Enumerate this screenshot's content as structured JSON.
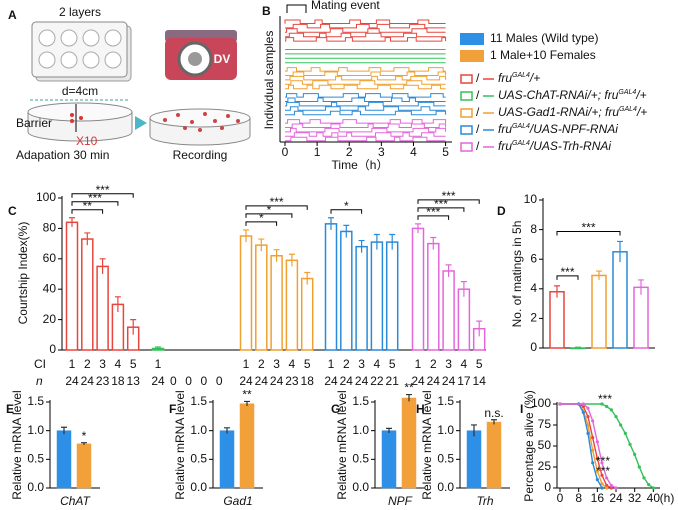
{
  "diagram_a": {
    "panel": "A",
    "layers": "2 layers",
    "distance": "d=4cm",
    "barrier": "Barrier",
    "count": "X10",
    "adaptation": "Adapation 30 min",
    "recording": "Recording",
    "camera": "DV"
  },
  "chart_data": [
    {
      "type": "raster",
      "panel": "B",
      "annotation": "Mating event",
      "ylabel": "Individual samples",
      "xlabel": "Time（h）",
      "xlim": [
        0,
        5.2
      ],
      "xticks": [
        0,
        1,
        2,
        3,
        4,
        5
      ],
      "legend": [
        {
          "name": "11 Males (Wild type)",
          "color": "#2e8fe6"
        },
        {
          "name": "1 Male+10 Females",
          "color": "#f2a03a"
        }
      ],
      "separator": "/",
      "groups": [
        {
          "color": "#e8453c",
          "label": [
            "fru",
            "GAL4",
            "/+"
          ]
        },
        {
          "color": "#33c05a",
          "label": [
            "UAS-ChAT-RNAi/+; fru",
            "GAL4",
            "/+"
          ]
        },
        {
          "color": "#f0a030",
          "label": [
            "UAS-Gad1-RNAi/+; fru",
            "GAL4",
            "/+"
          ]
        },
        {
          "color": "#2a8ad8",
          "label": [
            "fru",
            "GAL4",
            "/UAS-NPF-RNAi"
          ]
        },
        {
          "color": "#e466dc",
          "label": [
            "fru",
            "GAL4",
            "/UAS-Trh-RNAi"
          ]
        }
      ]
    },
    {
      "type": "grouped_bar",
      "panel": "C",
      "ylabel": "Courtship Index(%)",
      "ylim": [
        0,
        100
      ],
      "yticks": [
        0,
        20,
        40,
        60,
        80,
        100
      ],
      "row_labels": [
        "CI",
        "n"
      ],
      "series": [
        {
          "color": "#e8453c",
          "categories": [
            "1",
            "2",
            "3",
            "4",
            "5"
          ],
          "values": [
            84,
            73,
            55,
            30,
            15
          ],
          "errors": [
            3,
            4,
            5,
            5,
            5
          ],
          "n": [
            24,
            24,
            23,
            18,
            13
          ],
          "brackets": [
            {
              "label": "***",
              "from": 0,
              "to": 4
            },
            {
              "label": "***",
              "from": 0,
              "to": 3
            },
            {
              "label": "**",
              "from": 0,
              "to": 2
            }
          ]
        },
        {
          "color": "#33c05a",
          "categories": [
            "1",
            null,
            null,
            null,
            null
          ],
          "values": [
            1,
            null,
            null,
            null,
            null
          ],
          "errors": [
            1,
            null,
            null,
            null,
            null
          ],
          "n": [
            24,
            0,
            0,
            0,
            0
          ],
          "brackets": []
        },
        {
          "color": "#f0a030",
          "categories": [
            "1",
            "2",
            "3",
            "4",
            "5"
          ],
          "values": [
            75,
            69,
            62,
            59,
            47
          ],
          "errors": [
            4,
            4,
            4,
            4,
            4
          ],
          "n": [
            24,
            24,
            24,
            23,
            18
          ],
          "brackets": [
            {
              "label": "***",
              "from": 0,
              "to": 4
            },
            {
              "label": "*",
              "from": 0,
              "to": 3
            },
            {
              "label": "*",
              "from": 0,
              "to": 2
            }
          ]
        },
        {
          "color": "#2a8ad8",
          "categories": [
            "1",
            "2",
            "3",
            "4",
            "5"
          ],
          "values": [
            83,
            78,
            68,
            71,
            71
          ],
          "errors": [
            4,
            4,
            4,
            5,
            5
          ],
          "n": [
            24,
            24,
            24,
            22,
            21
          ],
          "brackets": [
            {
              "label": "*",
              "from": 0,
              "to": 2
            }
          ]
        },
        {
          "color": "#e466dc",
          "categories": [
            "1",
            "2",
            "3",
            "4",
            "5"
          ],
          "values": [
            80,
            70,
            52,
            40,
            14
          ],
          "errors": [
            3,
            4,
            4,
            5,
            5
          ],
          "n": [
            24,
            24,
            24,
            17,
            14
          ],
          "brackets": [
            {
              "label": "***",
              "from": 0,
              "to": 4
            },
            {
              "label": "***",
              "from": 0,
              "to": 3
            },
            {
              "label": "***",
              "from": 0,
              "to": 2
            }
          ]
        }
      ]
    },
    {
      "type": "bar",
      "panel": "D",
      "ylabel": "No. of matings in 5h",
      "categories": [
        null,
        null,
        null,
        null,
        null
      ],
      "values": [
        3.8,
        0,
        4.9,
        6.5,
        4.1
      ],
      "errors": [
        0.4,
        0.05,
        0.3,
        0.7,
        0.5
      ],
      "colors": [
        "#e8453c",
        "#33c05a",
        "#f0a030",
        "#2a8ad8",
        "#e466dc"
      ],
      "ylim": [
        0,
        10
      ],
      "yticks": [
        0,
        2,
        4,
        6,
        8,
        10
      ],
      "brackets": [
        {
          "label": "***",
          "from": 0,
          "to": 3
        },
        {
          "label": "***",
          "from": 0,
          "to": 1
        }
      ]
    },
    {
      "type": "bar",
      "panel": "E",
      "ylabel": "Relative mRNA level",
      "xlabel": "ChAT",
      "categories": [
        null,
        null
      ],
      "values": [
        1.0,
        0.77
      ],
      "errors": [
        0.06,
        0.02
      ],
      "colors": [
        "#2e8fe6",
        "#f2a03a"
      ],
      "ylim": [
        0,
        1.5
      ],
      "yticks": [
        {
          "value": 0,
          "label": "0.0"
        },
        0.5,
        {
          "value": 1,
          "label": "1.0"
        },
        1.5
      ],
      "annotation": "*"
    },
    {
      "type": "bar",
      "panel": "F",
      "ylabel": "Relative mRNA level",
      "xlabel": "Gad1",
      "categories": [
        null,
        null
      ],
      "values": [
        1.0,
        1.47
      ],
      "errors": [
        0.05,
        0.04
      ],
      "colors": [
        "#2e8fe6",
        "#f2a03a"
      ],
      "ylim": [
        0,
        1.5
      ],
      "yticks": [
        {
          "value": 0,
          "label": "0.0"
        },
        0.5,
        {
          "value": 1,
          "label": "1.0"
        },
        1.5
      ],
      "annotation": "**"
    },
    {
      "type": "bar",
      "panel": "G",
      "ylabel": "Relative mRNA level",
      "xlabel": "NPF",
      "categories": [
        null,
        null
      ],
      "values": [
        1.0,
        1.57
      ],
      "errors": [
        0.04,
        0.06
      ],
      "colors": [
        "#2e8fe6",
        "#f2a03a"
      ],
      "ylim": [
        0,
        1.5
      ],
      "yticks": [
        {
          "value": 0,
          "label": "0.0"
        },
        0.5,
        {
          "value": 1,
          "label": "1.0"
        },
        1.5
      ],
      "annotation": "**"
    },
    {
      "type": "bar",
      "panel": "H",
      "ylabel": "Relative mRNA level",
      "xlabel": "Trh",
      "categories": [
        null,
        null
      ],
      "values": [
        1.0,
        1.15
      ],
      "errors": [
        0.1,
        0.04
      ],
      "colors": [
        "#2e8fe6",
        "#f2a03a"
      ],
      "ylim": [
        0,
        1.5
      ],
      "yticks": [
        {
          "value": 0,
          "label": "0.0"
        },
        0.5,
        {
          "value": 1,
          "label": "1.0"
        },
        1.5
      ],
      "annotation": "n.s."
    },
    {
      "type": "line",
      "panel": "I",
      "ylabel": "Percentage alive (%)",
      "xlabel": "(h)",
      "xlim": [
        0,
        42
      ],
      "ylim": [
        0,
        100
      ],
      "xticks": [
        0,
        8,
        16,
        24,
        32,
        40
      ],
      "yticks": [
        0,
        25,
        50,
        75,
        100
      ],
      "annotations": [
        "***",
        "***",
        "***"
      ],
      "series": [
        {
          "color": "#e8453c",
          "x": [
            0,
            8,
            10,
            12,
            14,
            16,
            18,
            20,
            22
          ],
          "values": [
            100,
            100,
            97,
            85,
            60,
            35,
            15,
            3,
            0
          ]
        },
        {
          "color": "#33c05a",
          "x": [
            0,
            18,
            20,
            22,
            24,
            26,
            28,
            30,
            32,
            34,
            36,
            38,
            40
          ],
          "values": [
            100,
            100,
            97,
            93,
            85,
            75,
            65,
            52,
            40,
            25,
            12,
            4,
            0
          ]
        },
        {
          "color": "#f0a030",
          "x": [
            0,
            8,
            10,
            12,
            14,
            16,
            18,
            20
          ],
          "values": [
            100,
            100,
            92,
            75,
            45,
            20,
            5,
            0
          ]
        },
        {
          "color": "#2a8ad8",
          "x": [
            0,
            8,
            10,
            12,
            14,
            16,
            18
          ],
          "values": [
            100,
            100,
            90,
            65,
            30,
            10,
            0
          ]
        },
        {
          "color": "#e466dc",
          "x": [
            0,
            10,
            12,
            14,
            16,
            18,
            20,
            22,
            24
          ],
          "values": [
            100,
            100,
            95,
            80,
            55,
            30,
            12,
            3,
            0
          ]
        }
      ]
    }
  ]
}
